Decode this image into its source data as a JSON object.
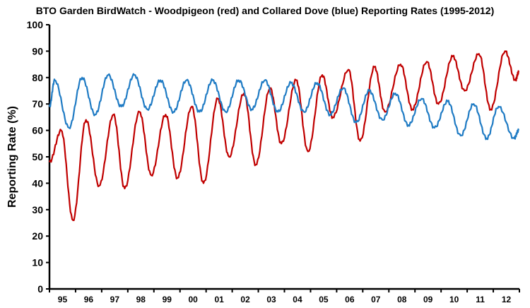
{
  "chart_data": {
    "type": "line",
    "title": "BTO Garden BirdWatch - Woodpigeon (red) and Collared Dove (blue) Reporting Rates (1995-2012)",
    "xlabel": "",
    "ylabel": "Reporting Rate (%)",
    "ylim": [
      0,
      100
    ],
    "yticks": [
      "0",
      "10",
      "20",
      "30",
      "40",
      "50",
      "60",
      "70",
      "80",
      "90",
      "100"
    ],
    "xlim": [
      1995,
      2013
    ],
    "xticks": [
      "95",
      "96",
      "97",
      "98",
      "99",
      "00",
      "01",
      "02",
      "03",
      "04",
      "05",
      "06",
      "07",
      "08",
      "09",
      "10",
      "11",
      "12"
    ],
    "grid": false,
    "series": [
      {
        "name": "Woodpigeon",
        "color": "#c00000",
        "points": [
          [
            1995.0,
            48
          ],
          [
            1995.45,
            60
          ],
          [
            1995.9,
            26
          ],
          [
            1996.4,
            64
          ],
          [
            1996.9,
            39
          ],
          [
            1997.45,
            66
          ],
          [
            1997.88,
            38
          ],
          [
            1998.45,
            67
          ],
          [
            1998.9,
            43
          ],
          [
            1999.45,
            66
          ],
          [
            1999.9,
            42
          ],
          [
            2000.45,
            69
          ],
          [
            2000.9,
            40
          ],
          [
            2001.45,
            72
          ],
          [
            2001.88,
            50
          ],
          [
            2002.45,
            74
          ],
          [
            2002.9,
            47
          ],
          [
            2003.45,
            76
          ],
          [
            2003.88,
            55
          ],
          [
            2004.45,
            79
          ],
          [
            2004.9,
            52
          ],
          [
            2005.45,
            81
          ],
          [
            2005.85,
            65
          ],
          [
            2006.45,
            83
          ],
          [
            2006.9,
            56
          ],
          [
            2007.45,
            84
          ],
          [
            2007.85,
            67
          ],
          [
            2008.45,
            85
          ],
          [
            2008.9,
            68
          ],
          [
            2009.45,
            86
          ],
          [
            2009.9,
            70
          ],
          [
            2010.45,
            88
          ],
          [
            2010.9,
            75
          ],
          [
            2011.45,
            89
          ],
          [
            2011.9,
            68
          ],
          [
            2012.45,
            90
          ],
          [
            2012.85,
            79
          ],
          [
            2012.97,
            82
          ]
        ]
      },
      {
        "name": "Collared Dove",
        "color": "#1f7bc4",
        "points": [
          [
            1995.0,
            69
          ],
          [
            1995.2,
            79
          ],
          [
            1995.75,
            61
          ],
          [
            1996.25,
            80
          ],
          [
            1996.75,
            66
          ],
          [
            1997.25,
            81
          ],
          [
            1997.75,
            69
          ],
          [
            1998.25,
            81
          ],
          [
            1998.75,
            68
          ],
          [
            1999.25,
            79
          ],
          [
            1999.75,
            67
          ],
          [
            2000.25,
            79
          ],
          [
            2000.75,
            67
          ],
          [
            2001.25,
            79
          ],
          [
            2001.75,
            67
          ],
          [
            2002.25,
            79
          ],
          [
            2002.75,
            68
          ],
          [
            2003.25,
            79
          ],
          [
            2003.75,
            67
          ],
          [
            2004.25,
            78
          ],
          [
            2004.75,
            67
          ],
          [
            2005.25,
            78
          ],
          [
            2005.75,
            66
          ],
          [
            2006.25,
            76
          ],
          [
            2006.75,
            63
          ],
          [
            2007.25,
            75
          ],
          [
            2007.75,
            64
          ],
          [
            2008.25,
            74
          ],
          [
            2008.75,
            62
          ],
          [
            2009.25,
            72
          ],
          [
            2009.75,
            61
          ],
          [
            2010.25,
            71
          ],
          [
            2010.75,
            58
          ],
          [
            2011.25,
            70
          ],
          [
            2011.75,
            57
          ],
          [
            2012.2,
            69
          ],
          [
            2012.8,
            57
          ],
          [
            2012.97,
            60
          ]
        ]
      }
    ]
  }
}
